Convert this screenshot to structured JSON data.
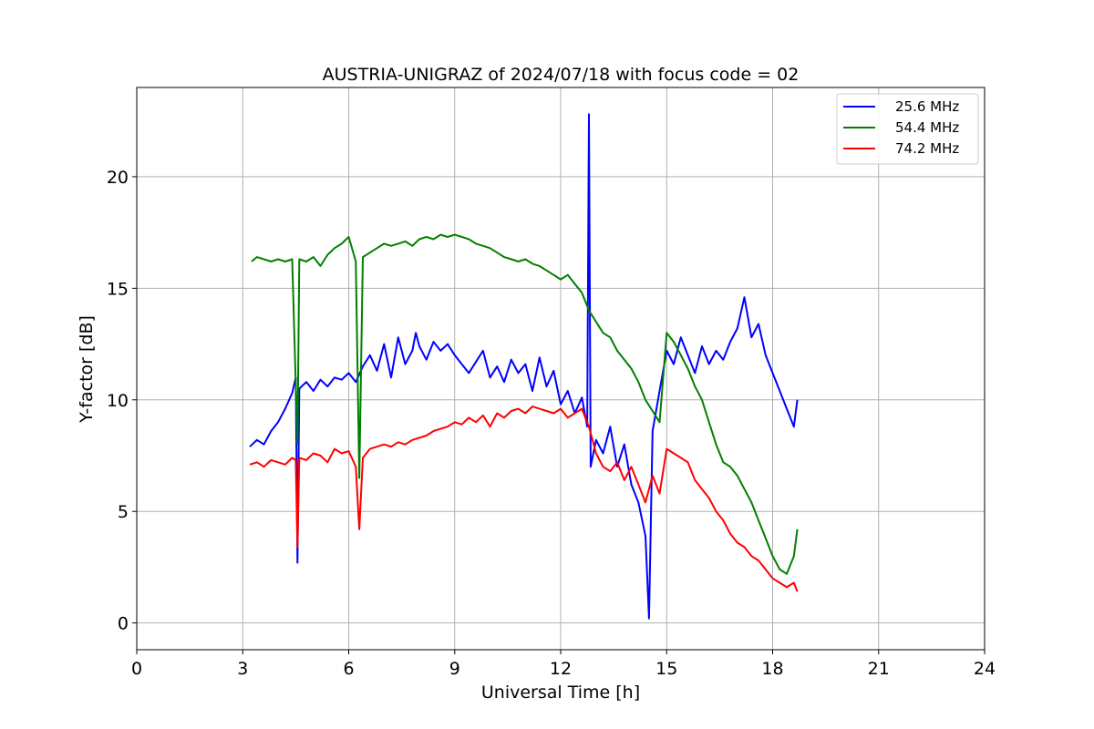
{
  "chart_data": {
    "type": "line",
    "title": "AUSTRIA-UNIGRAZ of 2024/07/18 with focus code = 02",
    "xlabel": "Universal Time [h]",
    "ylabel": "Y-factor [dB]",
    "xlim": [
      0,
      24
    ],
    "ylim": [
      -1.2,
      24.0
    ],
    "xticks": [
      0,
      3,
      6,
      9,
      12,
      15,
      18,
      21,
      24
    ],
    "yticks": [
      0,
      5,
      10,
      15,
      20
    ],
    "grid": true,
    "legend_position": "top-right",
    "series": [
      {
        "name": "25.6 MHz",
        "color": "#0000ff",
        "x": [
          3.2,
          3.4,
          3.6,
          3.8,
          4.0,
          4.2,
          4.4,
          4.5,
          4.55,
          4.6,
          4.8,
          5.0,
          5.2,
          5.4,
          5.6,
          5.8,
          6.0,
          6.2,
          6.4,
          6.6,
          6.8,
          7.0,
          7.2,
          7.4,
          7.6,
          7.8,
          7.9,
          8.0,
          8.2,
          8.4,
          8.6,
          8.8,
          9.0,
          9.2,
          9.4,
          9.6,
          9.8,
          10.0,
          10.2,
          10.4,
          10.6,
          10.8,
          11.0,
          11.2,
          11.4,
          11.6,
          11.8,
          12.0,
          12.2,
          12.4,
          12.6,
          12.75,
          12.8,
          12.85,
          13.0,
          13.2,
          13.4,
          13.6,
          13.8,
          14.0,
          14.2,
          14.4,
          14.5,
          14.6,
          14.8,
          15.0,
          15.2,
          15.4,
          15.6,
          15.8,
          16.0,
          16.2,
          16.4,
          16.6,
          16.8,
          17.0,
          17.2,
          17.4,
          17.6,
          17.8,
          18.0,
          18.2,
          18.4,
          18.6,
          18.7
        ],
        "y": [
          7.9,
          8.2,
          8.0,
          8.6,
          9.0,
          9.6,
          10.3,
          11.0,
          2.7,
          10.5,
          10.8,
          10.4,
          10.9,
          10.6,
          11.0,
          10.9,
          11.2,
          10.8,
          11.5,
          12.0,
          11.3,
          12.5,
          11.0,
          12.8,
          11.6,
          12.2,
          13.0,
          12.4,
          11.8,
          12.6,
          12.2,
          12.5,
          12.0,
          11.6,
          11.2,
          11.7,
          12.2,
          11.0,
          11.5,
          10.8,
          11.8,
          11.2,
          11.6,
          10.4,
          11.9,
          10.6,
          11.3,
          9.8,
          10.4,
          9.4,
          10.1,
          8.8,
          22.8,
          7.0,
          8.2,
          7.6,
          8.8,
          7.0,
          8.0,
          6.2,
          5.4,
          3.9,
          0.2,
          8.6,
          10.4,
          12.2,
          11.6,
          12.8,
          12.0,
          11.2,
          12.4,
          11.6,
          12.2,
          11.8,
          12.6,
          13.2,
          14.6,
          12.8,
          13.4,
          12.0,
          11.2,
          10.4,
          9.6,
          8.8,
          10.0
        ]
      },
      {
        "name": "54.4 MHz",
        "color": "#008000",
        "x": [
          3.25,
          3.4,
          3.6,
          3.8,
          4.0,
          4.2,
          4.4,
          4.55,
          4.6,
          4.8,
          5.0,
          5.2,
          5.4,
          5.6,
          5.8,
          6.0,
          6.2,
          6.3,
          6.4,
          6.6,
          6.8,
          7.0,
          7.2,
          7.4,
          7.6,
          7.8,
          8.0,
          8.2,
          8.4,
          8.6,
          8.8,
          9.0,
          9.2,
          9.4,
          9.6,
          9.8,
          10.0,
          10.2,
          10.4,
          10.6,
          10.8,
          11.0,
          11.2,
          11.4,
          11.6,
          11.8,
          12.0,
          12.2,
          12.4,
          12.6,
          12.8,
          13.0,
          13.2,
          13.4,
          13.6,
          13.8,
          14.0,
          14.2,
          14.4,
          14.6,
          14.8,
          15.0,
          15.2,
          15.4,
          15.6,
          15.8,
          16.0,
          16.2,
          16.4,
          16.6,
          16.8,
          17.0,
          17.2,
          17.4,
          17.6,
          17.8,
          18.0,
          18.2,
          18.4,
          18.6,
          18.7
        ],
        "y": [
          16.2,
          16.4,
          16.3,
          16.2,
          16.3,
          16.2,
          16.3,
          8.0,
          16.3,
          16.2,
          16.4,
          16.0,
          16.5,
          16.8,
          17.0,
          17.3,
          16.2,
          6.5,
          16.4,
          16.6,
          16.8,
          17.0,
          16.9,
          17.0,
          17.1,
          16.9,
          17.2,
          17.3,
          17.2,
          17.4,
          17.3,
          17.4,
          17.3,
          17.2,
          17.0,
          16.9,
          16.8,
          16.6,
          16.4,
          16.3,
          16.2,
          16.3,
          16.1,
          16.0,
          15.8,
          15.6,
          15.4,
          15.6,
          15.2,
          14.8,
          14.0,
          13.5,
          13.0,
          12.8,
          12.2,
          11.8,
          11.4,
          10.8,
          10.0,
          9.5,
          9.0,
          13.0,
          12.6,
          12.0,
          11.4,
          10.6,
          10.0,
          9.0,
          8.0,
          7.2,
          7.0,
          6.6,
          6.0,
          5.4,
          4.6,
          3.8,
          3.0,
          2.4,
          2.2,
          3.0,
          4.2
        ]
      },
      {
        "name": "74.2 MHz",
        "color": "#ff0000",
        "x": [
          3.2,
          3.4,
          3.6,
          3.8,
          4.0,
          4.2,
          4.4,
          4.5,
          4.55,
          4.6,
          4.8,
          5.0,
          5.2,
          5.4,
          5.6,
          5.8,
          6.0,
          6.2,
          6.3,
          6.4,
          6.6,
          6.8,
          7.0,
          7.2,
          7.4,
          7.6,
          7.8,
          8.0,
          8.2,
          8.4,
          8.6,
          8.8,
          9.0,
          9.2,
          9.4,
          9.6,
          9.8,
          10.0,
          10.2,
          10.4,
          10.6,
          10.8,
          11.0,
          11.2,
          11.4,
          11.6,
          11.8,
          12.0,
          12.2,
          12.4,
          12.6,
          12.8,
          13.0,
          13.2,
          13.4,
          13.6,
          13.8,
          14.0,
          14.2,
          14.4,
          14.6,
          14.8,
          15.0,
          15.2,
          15.4,
          15.6,
          15.8,
          16.0,
          16.2,
          16.4,
          16.6,
          16.8,
          17.0,
          17.2,
          17.4,
          17.6,
          17.8,
          18.0,
          18.2,
          18.4,
          18.6,
          18.7
        ],
        "y": [
          7.1,
          7.2,
          7.0,
          7.3,
          7.2,
          7.1,
          7.4,
          7.3,
          3.4,
          7.4,
          7.3,
          7.6,
          7.5,
          7.2,
          7.8,
          7.6,
          7.7,
          7.0,
          4.2,
          7.4,
          7.8,
          7.9,
          8.0,
          7.9,
          8.1,
          8.0,
          8.2,
          8.3,
          8.4,
          8.6,
          8.7,
          8.8,
          9.0,
          8.9,
          9.2,
          9.0,
          9.3,
          8.8,
          9.4,
          9.2,
          9.5,
          9.6,
          9.4,
          9.7,
          9.6,
          9.5,
          9.4,
          9.6,
          9.2,
          9.4,
          9.6,
          8.8,
          7.6,
          7.0,
          6.8,
          7.2,
          6.4,
          7.0,
          6.2,
          5.4,
          6.6,
          5.8,
          7.8,
          7.6,
          7.4,
          7.2,
          6.4,
          6.0,
          5.6,
          5.0,
          4.6,
          4.0,
          3.6,
          3.4,
          3.0,
          2.8,
          2.4,
          2.0,
          1.8,
          1.6,
          1.8,
          1.4
        ]
      }
    ]
  }
}
